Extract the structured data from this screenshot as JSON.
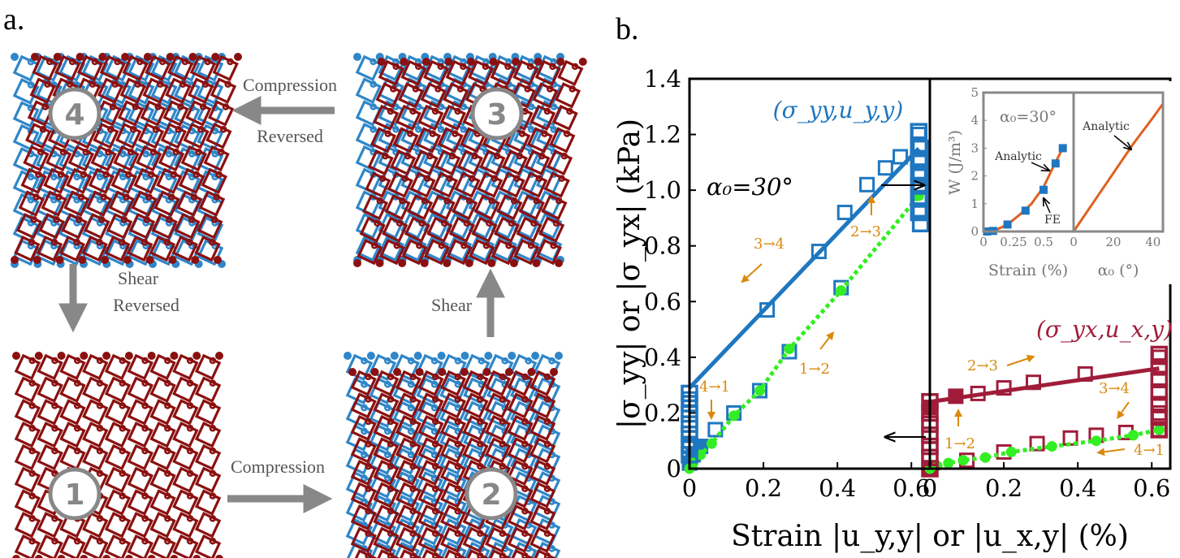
{
  "panel_a": {
    "label": "a.",
    "steps": [
      {
        "id": "1",
        "name": "step-1"
      },
      {
        "id": "2",
        "name": "step-2"
      },
      {
        "id": "3",
        "name": "step-3"
      },
      {
        "id": "4",
        "name": "step-4"
      }
    ],
    "arrows": {
      "compression": "Compression",
      "shear": "Shear",
      "compression_reversed_1": "Compression",
      "compression_reversed_2": "Reversed",
      "shear_reversed_1": "Shear",
      "shear_reversed_2": "Reversed"
    },
    "colors": {
      "top_layer": "#8b1010",
      "bottom_layer": "#2f86c8",
      "arrow": "#888888"
    }
  },
  "panel_b": {
    "label": "b.",
    "colors": {
      "blue": "#1f77c0",
      "red": "#a01d3a",
      "green": "#33ee22",
      "orange": "#d98a0e",
      "inset_line": "#e06020"
    }
  },
  "chart_data": [
    {
      "type": "scatter",
      "name": "main-left",
      "title": "",
      "annotation": "α₀=30°",
      "xlabel": "Strain |u_{y,y}| or |u_{x,y}| (%)",
      "ylabel": "|σ_yy| or |σ_yx| (kPa)",
      "xlim": [
        0,
        0.65
      ],
      "ylim": [
        0,
        1.4
      ],
      "x_ticks": [
        "0",
        "0.2",
        "0.4",
        "0.6"
      ],
      "y_ticks": [
        "0",
        "0.2",
        "0.4",
        "0.6",
        "0.8",
        "1.0",
        "1.2",
        "1.4"
      ],
      "series": [
        {
          "name": "(σ_yy, u_{y,y})",
          "kind": "loop_markers",
          "points": [
            [
              0,
              0.02
            ],
            [
              0.01,
              0.05
            ],
            [
              0.03,
              0.08
            ],
            [
              0.07,
              0.14
            ],
            [
              0.12,
              0.2
            ],
            [
              0.19,
              0.28
            ],
            [
              0.27,
              0.42
            ],
            [
              0.41,
              0.65
            ],
            [
              0.62,
              1.05
            ],
            [
              0.62,
              1.2
            ],
            [
              0.57,
              1.12
            ],
            [
              0.53,
              1.08
            ],
            [
              0.48,
              1.02
            ],
            [
              0.42,
              0.92
            ],
            [
              0.35,
              0.78
            ],
            [
              0.21,
              0.57
            ],
            [
              0,
              0.25
            ],
            [
              0,
              0.08
            ]
          ]
        },
        {
          "name": "Analytic upper",
          "kind": "line",
          "points": [
            [
              0,
              0.29
            ],
            [
              0.62,
              1.15
            ]
          ]
        },
        {
          "name": "Analytic lower",
          "kind": "green_dotted",
          "points": [
            [
              0,
              0.0
            ],
            [
              0.01,
              0.02
            ],
            [
              0.03,
              0.05
            ],
            [
              0.06,
              0.09
            ],
            [
              0.12,
              0.19
            ],
            [
              0.19,
              0.28
            ],
            [
              0.27,
              0.43
            ],
            [
              0.41,
              0.64
            ],
            [
              0.62,
              0.98
            ]
          ]
        }
      ],
      "labels": {
        "series": "(σ_yy,u_y,y)",
        "s12": "1→2",
        "s23": "2→3",
        "s34": "3→4",
        "s41": "4→1"
      }
    },
    {
      "type": "scatter",
      "name": "main-right",
      "xlim": [
        0,
        0.65
      ],
      "x_ticks": [
        "0",
        "0.2",
        "0.4",
        "0.6"
      ],
      "series": [
        {
          "name": "(σ_yx, u_{x,y})",
          "kind": "loop_markers",
          "points": [
            [
              0,
              0.0
            ],
            [
              0,
              0.22
            ],
            [
              0.07,
              0.26
            ],
            [
              0.13,
              0.27
            ],
            [
              0.2,
              0.29
            ],
            [
              0.28,
              0.31
            ],
            [
              0.42,
              0.34
            ],
            [
              0.62,
              0.4
            ],
            [
              0.62,
              0.2
            ],
            [
              0.62,
              0.14
            ],
            [
              0.53,
              0.13
            ],
            [
              0.45,
              0.12
            ],
            [
              0.38,
              0.11
            ],
            [
              0.29,
              0.09
            ],
            [
              0.2,
              0.06
            ],
            [
              0.1,
              0.03
            ]
          ]
        },
        {
          "name": "Analytic upper",
          "kind": "line",
          "points": [
            [
              0,
              0.24
            ],
            [
              0.62,
              0.36
            ]
          ]
        },
        {
          "name": "Analytic lower",
          "kind": "green_dotted",
          "points": [
            [
              0,
              0.0
            ],
            [
              0.02,
              0.01
            ],
            [
              0.05,
              0.02
            ],
            [
              0.09,
              0.03
            ],
            [
              0.15,
              0.04
            ],
            [
              0.22,
              0.06
            ],
            [
              0.33,
              0.08
            ],
            [
              0.45,
              0.1
            ],
            [
              0.55,
              0.12
            ],
            [
              0.62,
              0.14
            ]
          ]
        }
      ],
      "labels": {
        "series": "(σ_yx,u_x,y)",
        "s12": "1→2",
        "s23": "2→3",
        "s34": "3→4",
        "s41": "4→1"
      }
    },
    {
      "type": "line",
      "name": "inset-left",
      "annotation": "α₀=30°",
      "xlabel": "Strain (%)",
      "ylabel": "W (J/m³)",
      "xlim": [
        0,
        0.75
      ],
      "ylim": [
        0,
        5
      ],
      "x_ticks": [
        "0",
        "0.25",
        "0.5"
      ],
      "y_ticks": [
        "0",
        "1",
        "2",
        "3",
        "4",
        "5"
      ],
      "series": [
        {
          "name": "Analytic",
          "kind": "line",
          "points": [
            [
              0,
              0.0
            ],
            [
              0.1,
              0.05
            ],
            [
              0.2,
              0.25
            ],
            [
              0.3,
              0.6
            ],
            [
              0.4,
              1.0
            ],
            [
              0.5,
              1.6
            ],
            [
              0.6,
              2.5
            ],
            [
              0.66,
              3.0
            ]
          ]
        },
        {
          "name": "FE",
          "kind": "markers",
          "points": [
            [
              0.03,
              0.0
            ],
            [
              0.08,
              0.02
            ],
            [
              0.2,
              0.25
            ],
            [
              0.35,
              0.75
            ],
            [
              0.5,
              1.5
            ],
            [
              0.6,
              2.45
            ],
            [
              0.66,
              3.0
            ]
          ]
        }
      ],
      "labels": {
        "analytic": "Analytic",
        "fe": "FE"
      }
    },
    {
      "type": "line",
      "name": "inset-right",
      "xlabel": "α₀ (°)",
      "xlim": [
        0,
        45
      ],
      "x_ticks": [
        "0",
        "20",
        "40"
      ],
      "series": [
        {
          "name": "Analytic",
          "kind": "line",
          "points": [
            [
              0,
              0.0
            ],
            [
              10,
              1.05
            ],
            [
              20,
              2.1
            ],
            [
              30,
              3.15
            ],
            [
              40,
              4.1
            ],
            [
              45,
              4.6
            ]
          ]
        }
      ],
      "labels": {
        "analytic": "Analytic"
      }
    }
  ]
}
